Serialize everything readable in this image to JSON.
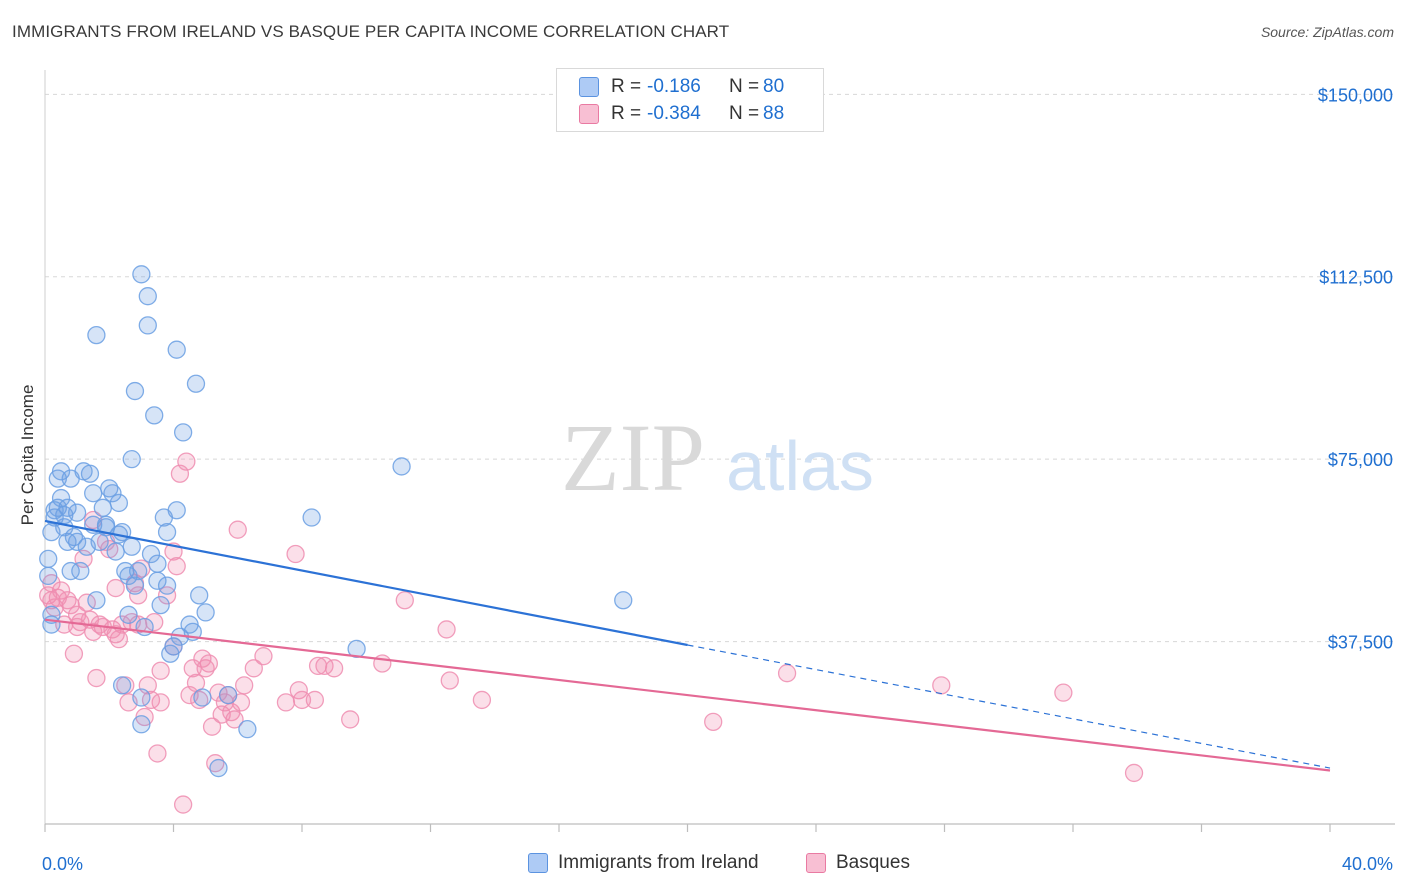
{
  "title": "IMMIGRANTS FROM IRELAND VS BASQUE PER CAPITA INCOME CORRELATION CHART",
  "source": "Source: ZipAtlas.com",
  "watermark": {
    "zip": "ZIP",
    "atlas": "atlas"
  },
  "legend": {
    "r_label": "R =",
    "n_label": "N =",
    "series": [
      {
        "r": "-0.186",
        "n": "80",
        "fill": "#aecbf5",
        "stroke": "#5b93e0"
      },
      {
        "r": "-0.384",
        "n": "88",
        "fill": "#f8bfd3",
        "stroke": "#e97aa2"
      }
    ]
  },
  "bottom_legend": [
    "Immigrants from Ireland",
    "Basques"
  ],
  "colors": {
    "blue_point": "#6a9fe3",
    "blue_line": "#2c72d6",
    "pink_point": "#ef8db0",
    "pink_line": "#e46995",
    "axis_label": "#1f6fd0",
    "grid": "#d8d8d8"
  },
  "chart_data": {
    "type": "scatter",
    "title": "IMMIGRANTS FROM IRELAND VS BASQUE PER CAPITA INCOME CORRELATION CHART",
    "xlabel": "",
    "ylabel": "Per Capita Income",
    "xlim": [
      0,
      40
    ],
    "ylim": [
      0,
      155000
    ],
    "x_tick_labels": [
      "0.0%",
      "40.0%"
    ],
    "y_ticks": [
      37500,
      75000,
      112500,
      150000
    ],
    "y_tick_labels": [
      "$37,500",
      "$75,000",
      "$112,500",
      "$150,000"
    ],
    "grid": true,
    "legend_position": "top-center",
    "series": [
      {
        "name": "Immigrants from Ireland",
        "r": -0.186,
        "n": 80,
        "trend": {
          "x0": 0,
          "y0": 62300,
          "x1": 20,
          "y1": 36800,
          "dashed_to": {
            "x": 40,
            "y": 11500
          }
        },
        "points": [
          [
            0.1,
            54500
          ],
          [
            0.1,
            51000
          ],
          [
            0.2,
            43000
          ],
          [
            0.2,
            41000
          ],
          [
            0.2,
            60000
          ],
          [
            0.3,
            63000
          ],
          [
            0.4,
            65000
          ],
          [
            0.4,
            71000
          ],
          [
            0.5,
            72500
          ],
          [
            0.5,
            67000
          ],
          [
            0.6,
            63500
          ],
          [
            0.6,
            61000
          ],
          [
            0.7,
            65000
          ],
          [
            0.7,
            58000
          ],
          [
            0.8,
            52000
          ],
          [
            0.8,
            71000
          ],
          [
            0.9,
            59000
          ],
          [
            1.0,
            58000
          ],
          [
            1.0,
            64000
          ],
          [
            1.1,
            52000
          ],
          [
            1.2,
            72500
          ],
          [
            1.3,
            57000
          ],
          [
            1.4,
            72000
          ],
          [
            1.5,
            61500
          ],
          [
            1.5,
            68000
          ],
          [
            1.6,
            46000
          ],
          [
            1.6,
            100500
          ],
          [
            1.7,
            58000
          ],
          [
            1.8,
            65000
          ],
          [
            1.9,
            61000
          ],
          [
            2.0,
            69000
          ],
          [
            2.1,
            68000
          ],
          [
            2.2,
            56000
          ],
          [
            2.3,
            59500
          ],
          [
            2.3,
            66000
          ],
          [
            2.4,
            60000
          ],
          [
            2.4,
            28500
          ],
          [
            2.5,
            52000
          ],
          [
            2.6,
            43000
          ],
          [
            2.7,
            57000
          ],
          [
            2.7,
            75000
          ],
          [
            2.8,
            89000
          ],
          [
            2.8,
            49000
          ],
          [
            2.9,
            52000
          ],
          [
            3.0,
            26000
          ],
          [
            3.0,
            20500
          ],
          [
            3.0,
            113000
          ],
          [
            3.1,
            40500
          ],
          [
            3.2,
            108500
          ],
          [
            3.2,
            102500
          ],
          [
            3.3,
            55500
          ],
          [
            3.4,
            84000
          ],
          [
            3.5,
            53500
          ],
          [
            3.5,
            50000
          ],
          [
            3.6,
            45000
          ],
          [
            3.7,
            63000
          ],
          [
            3.8,
            60000
          ],
          [
            3.8,
            49000
          ],
          [
            3.9,
            35000
          ],
          [
            4.1,
            64500
          ],
          [
            4.1,
            97500
          ],
          [
            4.2,
            38500
          ],
          [
            4.3,
            80500
          ],
          [
            4.5,
            41000
          ],
          [
            4.6,
            39500
          ],
          [
            4.7,
            90500
          ],
          [
            4.8,
            47000
          ],
          [
            4.9,
            26000
          ],
          [
            5.0,
            43500
          ],
          [
            5.4,
            11500
          ],
          [
            6.3,
            19500
          ],
          [
            8.3,
            63000
          ],
          [
            9.7,
            36000
          ],
          [
            11.1,
            73500
          ],
          [
            18.0,
            46000
          ],
          [
            0.3,
            64500
          ],
          [
            1.9,
            61500
          ],
          [
            2.6,
            51000
          ],
          [
            4.0,
            36500
          ],
          [
            5.7,
            26500
          ]
        ]
      },
      {
        "name": "Basques",
        "r": -0.384,
        "n": 88,
        "trend": {
          "x0": 0,
          "y0": 42000,
          "x1": 40,
          "y1": 11000
        },
        "points": [
          [
            0.1,
            47000
          ],
          [
            0.2,
            49500
          ],
          [
            0.3,
            44500
          ],
          [
            0.4,
            46500
          ],
          [
            0.5,
            48000
          ],
          [
            0.6,
            41000
          ],
          [
            0.7,
            46000
          ],
          [
            0.8,
            45000
          ],
          [
            0.9,
            35000
          ],
          [
            1.0,
            43000
          ],
          [
            1.1,
            41500
          ],
          [
            1.2,
            54500
          ],
          [
            1.3,
            45500
          ],
          [
            1.4,
            42000
          ],
          [
            1.5,
            39500
          ],
          [
            1.6,
            30000
          ],
          [
            1.7,
            41000
          ],
          [
            1.8,
            40500
          ],
          [
            1.9,
            58000
          ],
          [
            2.0,
            56500
          ],
          [
            2.1,
            40000
          ],
          [
            2.2,
            48500
          ],
          [
            2.3,
            38000
          ],
          [
            2.4,
            41000
          ],
          [
            2.5,
            28500
          ],
          [
            2.6,
            25000
          ],
          [
            2.7,
            41500
          ],
          [
            2.8,
            49500
          ],
          [
            2.9,
            47000
          ],
          [
            3.0,
            52500
          ],
          [
            3.1,
            22000
          ],
          [
            3.2,
            28500
          ],
          [
            3.3,
            25500
          ],
          [
            3.4,
            41500
          ],
          [
            3.5,
            14500
          ],
          [
            3.6,
            25000
          ],
          [
            3.8,
            47000
          ],
          [
            4.0,
            56000
          ],
          [
            4.0,
            36500
          ],
          [
            4.1,
            53000
          ],
          [
            4.2,
            72000
          ],
          [
            4.3,
            4000
          ],
          [
            4.4,
            74500
          ],
          [
            4.5,
            26500
          ],
          [
            4.6,
            32000
          ],
          [
            4.7,
            29000
          ],
          [
            4.8,
            25500
          ],
          [
            4.9,
            34000
          ],
          [
            5.0,
            32000
          ],
          [
            5.2,
            20000
          ],
          [
            5.3,
            12500
          ],
          [
            5.4,
            27000
          ],
          [
            5.5,
            22500
          ],
          [
            5.6,
            25000
          ],
          [
            5.7,
            26500
          ],
          [
            5.8,
            23000
          ],
          [
            5.9,
            21500
          ],
          [
            6.0,
            60500
          ],
          [
            6.1,
            25000
          ],
          [
            6.2,
            28500
          ],
          [
            6.5,
            32000
          ],
          [
            6.8,
            34500
          ],
          [
            7.5,
            25000
          ],
          [
            7.8,
            55500
          ],
          [
            7.9,
            27500
          ],
          [
            8.0,
            25500
          ],
          [
            8.5,
            32500
          ],
          [
            8.7,
            32500
          ],
          [
            9.0,
            32000
          ],
          [
            9.5,
            21500
          ],
          [
            10.5,
            33000
          ],
          [
            11.2,
            46000
          ],
          [
            12.5,
            40000
          ],
          [
            12.6,
            29500
          ],
          [
            13.6,
            25500
          ],
          [
            20.8,
            21000
          ],
          [
            23.1,
            31000
          ],
          [
            27.9,
            28500
          ],
          [
            31.7,
            27000
          ],
          [
            33.9,
            10500
          ],
          [
            0.2,
            46000
          ],
          [
            1.5,
            62500
          ],
          [
            2.2,
            39000
          ],
          [
            3.6,
            31500
          ],
          [
            5.1,
            33000
          ],
          [
            8.4,
            25500
          ],
          [
            1.0,
            40500
          ],
          [
            2.9,
            41000
          ]
        ]
      }
    ]
  }
}
